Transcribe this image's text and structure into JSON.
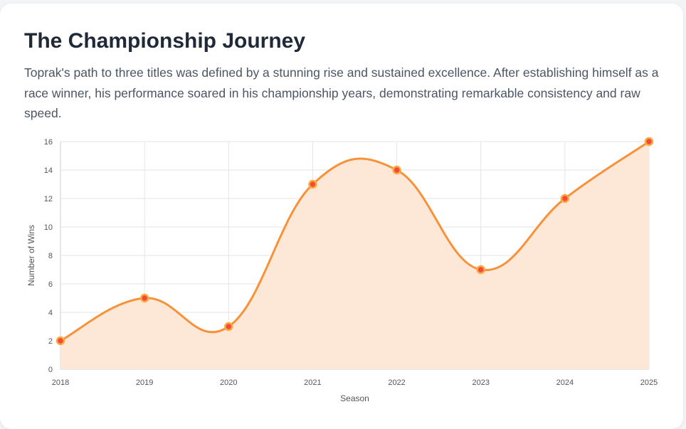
{
  "card": {
    "title": "The Championship Journey",
    "description": "Toprak's path to three titles was defined by a stunning rise and sustained excellence. After establishing himself as a race winner, his performance soared in his championship years, demonstrating remarkable consistency and raw speed."
  },
  "chart_data": {
    "type": "line",
    "title": "",
    "xlabel": "Season",
    "ylabel": "Number of Wins",
    "categories": [
      "2018",
      "2019",
      "2020",
      "2021",
      "2022",
      "2023",
      "2024",
      "2025"
    ],
    "series": [
      {
        "values": [
          2,
          5,
          3,
          13,
          14,
          7,
          12,
          16
        ]
      }
    ],
    "ylim": [
      0,
      16
    ],
    "yticks": [
      0,
      2,
      4,
      6,
      8,
      10,
      12,
      14,
      16
    ],
    "grid": true,
    "filled_area": true,
    "smooth": true,
    "colors": {
      "line": "#f7923a",
      "fill": "#fde8d8",
      "point": "#f44a3a",
      "point_border": "#fbab3e",
      "grid": "#e5e5e5"
    }
  }
}
